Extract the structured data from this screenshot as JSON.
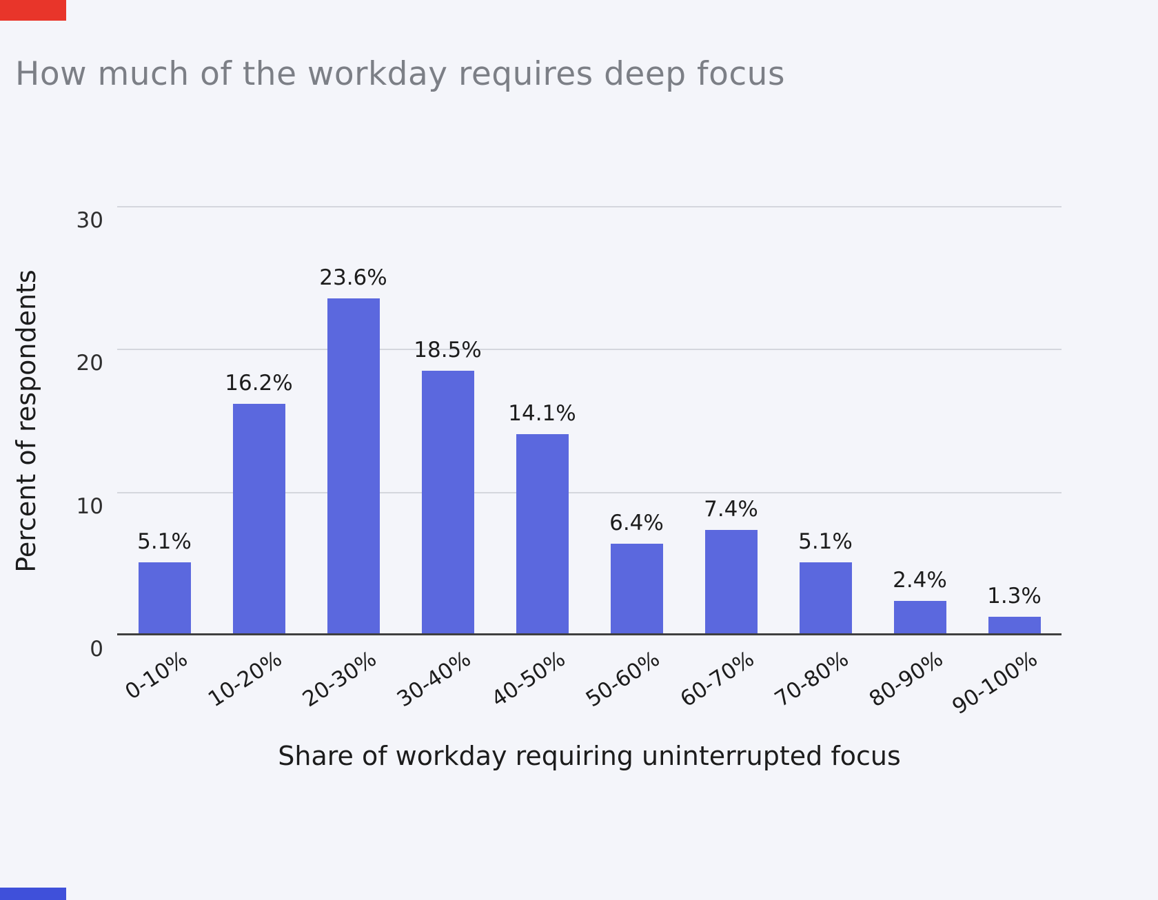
{
  "accents": {
    "top_left_color": "#e8352a",
    "bottom_left_color": "#3f50da"
  },
  "chart_data": {
    "type": "bar",
    "title": "How much of the workday requires deep focus",
    "categories": [
      "0-10%",
      "10-20%",
      "20-30%",
      "30-40%",
      "40-50%",
      "50-60%",
      "60-70%",
      "70-80%",
      "80-90%",
      "90-100%"
    ],
    "values": [
      5.1,
      16.2,
      23.6,
      18.5,
      14.1,
      6.4,
      7.4,
      5.1,
      2.4,
      1.3
    ],
    "value_labels": [
      "5.1%",
      "16.2%",
      "23.6%",
      "18.5%",
      "14.1%",
      "6.4%",
      "7.4%",
      "5.1%",
      "2.4%",
      "1.3%"
    ],
    "xlabel": "Share of workday requiring uninterrupted focus",
    "ylabel": "Percent of respondents",
    "ylim": [
      0,
      30
    ],
    "yticks": [
      0,
      10,
      20,
      30
    ],
    "grid": true,
    "legend_position": "none",
    "bar_color": "#5b68de",
    "background_color": "#f4f5fa"
  }
}
